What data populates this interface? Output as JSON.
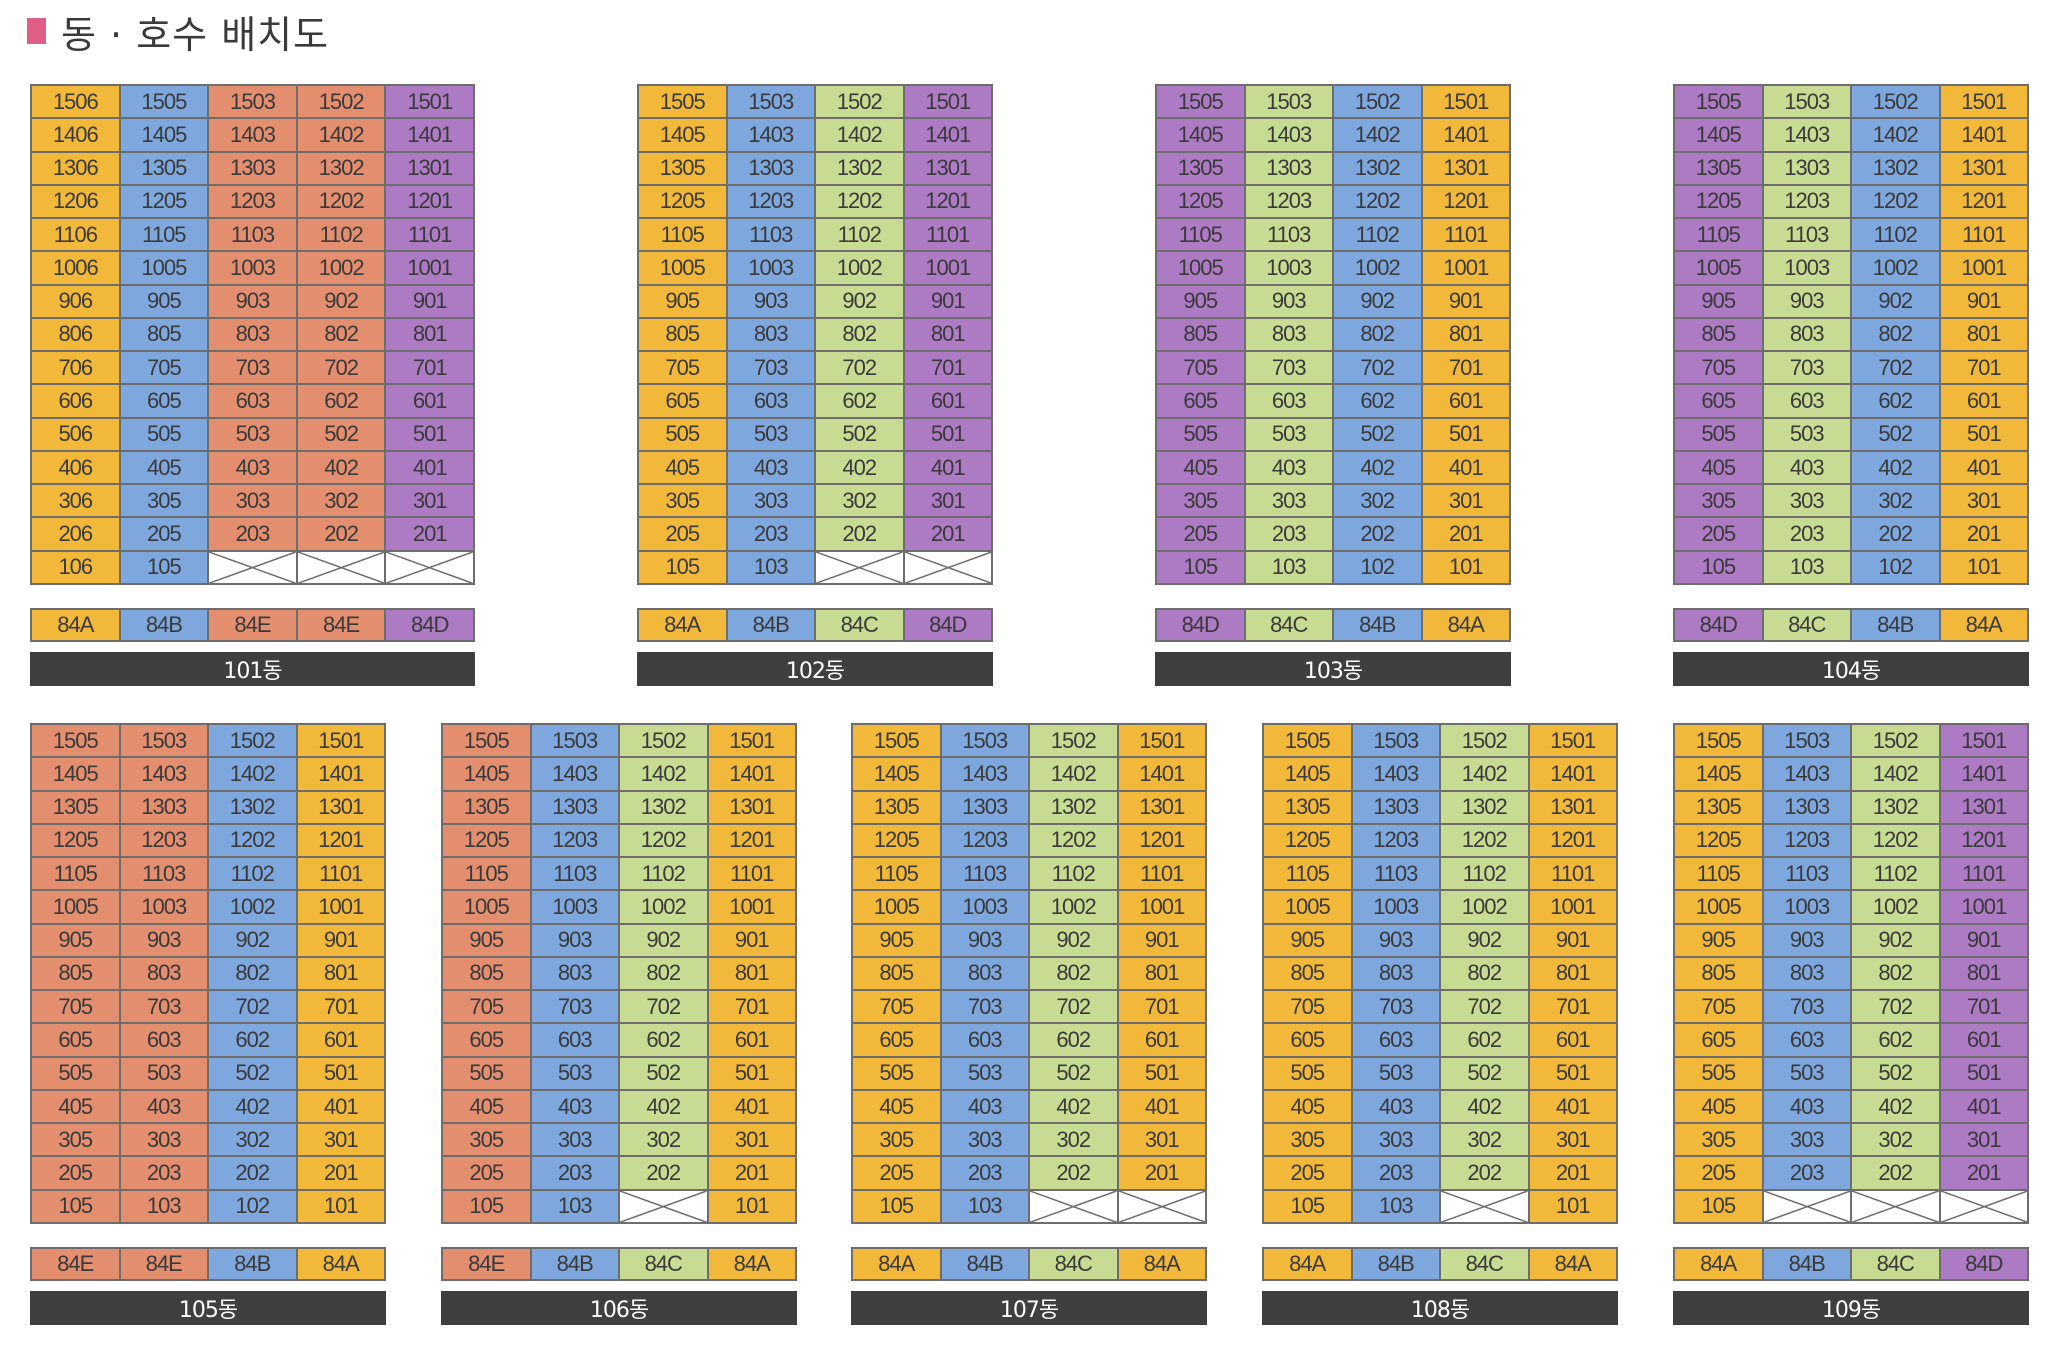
{
  "title": "동 · 호수 배치도",
  "colors": {
    "84A": "#f2b83a",
    "84B": "#7ea7de",
    "84C": "#c7dc92",
    "84D": "#ad7ac4",
    "84E": "#e38e6f",
    "title_marker": "#e05d86",
    "bar": "#3f3f3f"
  },
  "buildings": [
    {
      "name": "101동",
      "suffixes": [
        "06",
        "05",
        "03",
        "02",
        "01"
      ],
      "types": [
        "84A",
        "84B",
        "84E",
        "84E",
        "84D"
      ],
      "floors": [
        15,
        14,
        13,
        12,
        11,
        10,
        9,
        8,
        7,
        6,
        5,
        4,
        3,
        2,
        1
      ],
      "missing": [
        "103",
        "102",
        "101"
      ]
    },
    {
      "name": "102동",
      "suffixes": [
        "05",
        "03",
        "02",
        "01"
      ],
      "types": [
        "84A",
        "84B",
        "84C",
        "84D"
      ],
      "floors": [
        15,
        14,
        13,
        12,
        11,
        10,
        9,
        8,
        7,
        6,
        5,
        4,
        3,
        2,
        1
      ],
      "missing": [
        "102",
        "101"
      ]
    },
    {
      "name": "103동",
      "suffixes": [
        "05",
        "03",
        "02",
        "01"
      ],
      "types": [
        "84D",
        "84C",
        "84B",
        "84A"
      ],
      "floors": [
        15,
        14,
        13,
        12,
        11,
        10,
        9,
        8,
        7,
        6,
        5,
        4,
        3,
        2,
        1
      ],
      "missing": []
    },
    {
      "name": "104동",
      "suffixes": [
        "05",
        "03",
        "02",
        "01"
      ],
      "types": [
        "84D",
        "84C",
        "84B",
        "84A"
      ],
      "floors": [
        15,
        14,
        13,
        12,
        11,
        10,
        9,
        8,
        7,
        6,
        5,
        4,
        3,
        2,
        1
      ],
      "missing": []
    },
    {
      "name": "105동",
      "suffixes": [
        "05",
        "03",
        "02",
        "01"
      ],
      "types": [
        "84E",
        "84E",
        "84B",
        "84A"
      ],
      "floors": [
        15,
        14,
        13,
        12,
        11,
        10,
        9,
        8,
        7,
        6,
        5,
        4,
        3,
        2,
        1
      ],
      "missing": []
    },
    {
      "name": "106동",
      "suffixes": [
        "05",
        "03",
        "02",
        "01"
      ],
      "types": [
        "84E",
        "84B",
        "84C",
        "84A"
      ],
      "floors": [
        15,
        14,
        13,
        12,
        11,
        10,
        9,
        8,
        7,
        6,
        5,
        4,
        3,
        2,
        1
      ],
      "missing": [
        "102"
      ]
    },
    {
      "name": "107동",
      "suffixes": [
        "05",
        "03",
        "02",
        "01"
      ],
      "types": [
        "84A",
        "84B",
        "84C",
        "84A"
      ],
      "floors": [
        15,
        14,
        13,
        12,
        11,
        10,
        9,
        8,
        7,
        6,
        5,
        4,
        3,
        2,
        1
      ],
      "missing": [
        "102",
        "101"
      ]
    },
    {
      "name": "108동",
      "suffixes": [
        "05",
        "03",
        "02",
        "01"
      ],
      "types": [
        "84A",
        "84B",
        "84C",
        "84A"
      ],
      "floors": [
        15,
        14,
        13,
        12,
        11,
        10,
        9,
        8,
        7,
        6,
        5,
        4,
        3,
        2,
        1
      ],
      "missing": [
        "102"
      ]
    },
    {
      "name": "109동",
      "suffixes": [
        "05",
        "03",
        "02",
        "01"
      ],
      "types": [
        "84A",
        "84B",
        "84C",
        "84D"
      ],
      "floors": [
        15,
        14,
        13,
        12,
        11,
        10,
        9,
        8,
        7,
        6,
        5,
        4,
        3,
        2,
        1
      ],
      "missing": [
        "103",
        "102",
        "101"
      ]
    }
  ]
}
